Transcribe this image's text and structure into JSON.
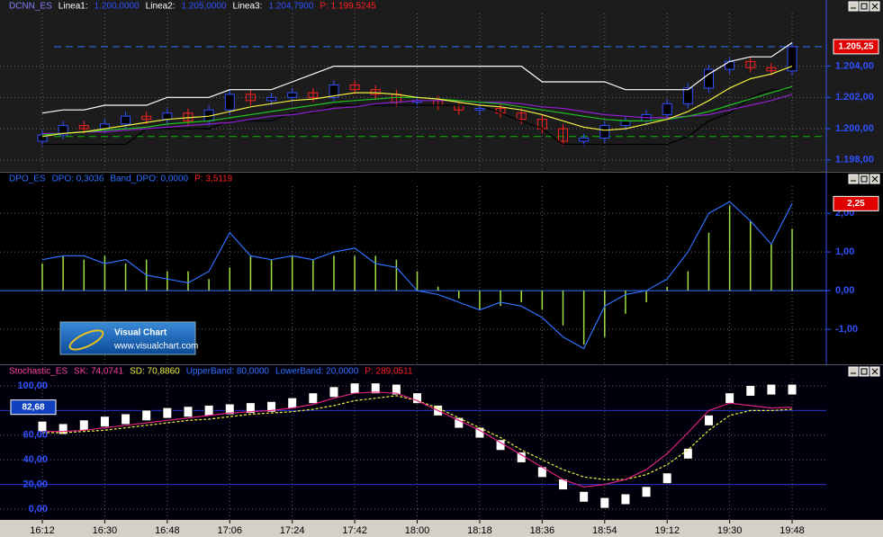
{
  "chart_data": [
    {
      "type": "candlestick",
      "header": [
        {
          "text": "DCNN_ES",
          "color": "#8080ff"
        },
        {
          "text": "Linea1:",
          "color": "#ffffff"
        },
        {
          "text": "1.200,0000",
          "color": "#3050ff"
        },
        {
          "text": "Linea2:",
          "color": "#ffffff"
        },
        {
          "text": "1.205,0000",
          "color": "#3050ff"
        },
        {
          "text": "Linea3:",
          "color": "#ffffff"
        },
        {
          "text": "1.204,7900",
          "color": "#3050ff"
        },
        {
          "text": "P: 1.199,5245",
          "color": "#ff2020"
        }
      ],
      "open": [
        1199.2,
        1199.6,
        1200.2,
        1200.0,
        1200.3,
        1200.8,
        1200.6,
        1201.0,
        1200.5,
        1201.2,
        1202.2,
        1201.8,
        1202.0,
        1202.3,
        1202.0,
        1202.8,
        1202.5,
        1202.2,
        1201.7,
        1201.8,
        1201.5,
        1201.2,
        1201.3,
        1201.0,
        1200.6,
        1200.0,
        1199.2,
        1199.4,
        1200.2,
        1200.5,
        1200.9,
        1201.6,
        1202.6,
        1203.8,
        1204.3,
        1203.9,
        1203.7
      ],
      "high": [
        1199.9,
        1200.5,
        1200.5,
        1200.6,
        1201.1,
        1201.1,
        1201.3,
        1201.3,
        1201.5,
        1202.5,
        1202.5,
        1202.3,
        1202.6,
        1202.6,
        1203.1,
        1203.1,
        1202.8,
        1202.5,
        1202.1,
        1202.1,
        1201.8,
        1201.6,
        1201.6,
        1201.3,
        1200.9,
        1200.3,
        1199.7,
        1200.5,
        1200.8,
        1201.2,
        1201.9,
        1202.9,
        1204.1,
        1204.6,
        1204.6,
        1204.2,
        1205.55
      ],
      "low": [
        1198.9,
        1199.3,
        1199.7,
        1199.7,
        1200.0,
        1200.3,
        1200.3,
        1200.2,
        1200.2,
        1200.9,
        1201.5,
        1201.5,
        1201.7,
        1201.7,
        1201.7,
        1202.2,
        1201.9,
        1201.4,
        1201.4,
        1201.2,
        1200.9,
        1200.9,
        1200.7,
        1200.3,
        1199.7,
        1198.9,
        1198.9,
        1199.1,
        1199.9,
        1200.2,
        1200.6,
        1201.3,
        1202.3,
        1203.5,
        1203.6,
        1203.4,
        1203.4
      ],
      "close": [
        1199.6,
        1200.2,
        1200.0,
        1200.3,
        1200.8,
        1200.6,
        1201.0,
        1200.5,
        1201.2,
        1202.2,
        1201.8,
        1202.0,
        1202.3,
        1202.0,
        1202.8,
        1202.5,
        1202.2,
        1201.7,
        1201.8,
        1201.5,
        1201.2,
        1201.3,
        1201.0,
        1200.6,
        1200.0,
        1199.2,
        1199.4,
        1200.2,
        1200.5,
        1200.9,
        1201.6,
        1202.6,
        1203.8,
        1204.3,
        1203.9,
        1203.7,
        1205.25
      ],
      "up_color": "#3050ff",
      "down_color": "#ff2020",
      "series": [
        {
          "color": "#ffffff",
          "values": [
            1201.0,
            1201.2,
            1201.2,
            1201.5,
            1201.5,
            1201.5,
            1202.0,
            1202.0,
            1202.0,
            1202.5,
            1202.5,
            1202.5,
            1203.0,
            1203.5,
            1204.0,
            1204.0,
            1204.0,
            1204.0,
            1204.0,
            1204.0,
            1204.0,
            1204.0,
            1204.0,
            1204.0,
            1203.0,
            1203.0,
            1203.0,
            1203.0,
            1202.5,
            1202.5,
            1202.5,
            1202.5,
            1203.5,
            1204.3,
            1204.6,
            1204.6,
            1205.5
          ]
        },
        {
          "color": "#000000",
          "values": [
            1199.0,
            1199.0,
            1199.0,
            1199.0,
            1199.0,
            1200.0,
            1200.0,
            1200.0,
            1200.0,
            1200.5,
            1200.5,
            1200.5,
            1201.0,
            1201.0,
            1201.5,
            1201.5,
            1201.5,
            1201.5,
            1201.5,
            1201.5,
            1201.5,
            1201.5,
            1201.0,
            1200.5,
            1200.0,
            1199.0,
            1199.0,
            1199.0,
            1199.0,
            1199.0,
            1199.0,
            1199.5,
            1200.5,
            1201.0,
            1202.0,
            1202.5,
            1202.5
          ]
        },
        {
          "color": "#9020d0",
          "values": [
            1199.7,
            1199.7,
            1199.8,
            1199.8,
            1199.9,
            1200.0,
            1200.1,
            1200.2,
            1200.3,
            1200.4,
            1200.6,
            1200.8,
            1200.9,
            1201.1,
            1201.3,
            1201.4,
            1201.6,
            1201.7,
            1201.8,
            1201.8,
            1201.8,
            1201.7,
            1201.7,
            1201.6,
            1201.4,
            1201.3,
            1201.1,
            1200.9,
            1200.8,
            1200.7,
            1200.7,
            1200.8,
            1200.9,
            1201.2,
            1201.5,
            1201.8,
            1202.2
          ]
        },
        {
          "color": "#20c020",
          "values": [
            1199.6,
            1199.7,
            1199.8,
            1199.9,
            1200.0,
            1200.1,
            1200.3,
            1200.4,
            1200.5,
            1200.7,
            1200.9,
            1201.1,
            1201.3,
            1201.5,
            1201.7,
            1201.8,
            1201.9,
            1202.0,
            1202.0,
            1201.9,
            1201.8,
            1201.7,
            1201.6,
            1201.4,
            1201.2,
            1201.0,
            1200.8,
            1200.6,
            1200.5,
            1200.5,
            1200.6,
            1200.8,
            1201.1,
            1201.5,
            1201.9,
            1202.3,
            1202.7
          ]
        },
        {
          "color": "#f0f040",
          "values": [
            1199.5,
            1199.7,
            1199.8,
            1200.0,
            1200.2,
            1200.4,
            1200.6,
            1200.7,
            1200.8,
            1201.1,
            1201.4,
            1201.6,
            1201.8,
            1201.9,
            1202.1,
            1202.3,
            1202.3,
            1202.2,
            1202.0,
            1201.9,
            1201.7,
            1201.5,
            1201.4,
            1201.2,
            1200.9,
            1200.5,
            1200.1,
            1199.9,
            1200.0,
            1200.3,
            1200.6,
            1201.1,
            1201.8,
            1202.6,
            1203.2,
            1203.5,
            1204.0
          ]
        }
      ],
      "hlines": [
        {
          "value": 1205.25,
          "color": "#3070ff"
        },
        {
          "value": 1199.5,
          "color": "#00c000"
        }
      ],
      "last": {
        "value": 1205.25,
        "label": "1.205,25",
        "color": "#e00000"
      },
      "ylim": [
        1197.3,
        1207.2
      ],
      "yticks": [
        {
          "value": 1204,
          "label": "1.204,00"
        },
        {
          "value": 1202,
          "label": "1.202,00"
        },
        {
          "value": 1200,
          "label": "1.200,00"
        },
        {
          "value": 1198,
          "label": "1.198,00"
        }
      ],
      "grid": true
    },
    {
      "type": "oscillator",
      "header": [
        {
          "text": "DPO_ES",
          "color": "#3070ff"
        },
        {
          "text": "DPO: 0,3036",
          "color": "#3070ff"
        },
        {
          "text": "Band_DPO: 0,0000",
          "color": "#3070ff"
        },
        {
          "text": "P: 3,5119",
          "color": "#ff2020"
        }
      ],
      "bars": {
        "color": "#a0e040",
        "values": [
          0.7,
          0.9,
          0.8,
          0.9,
          0.7,
          0.8,
          0.5,
          0.5,
          0.3,
          0.6,
          0.9,
          0.8,
          0.9,
          0.8,
          0.9,
          0.9,
          0.9,
          0.8,
          0.5,
          0.1,
          -0.2,
          -0.5,
          -0.4,
          -0.3,
          -0.5,
          -0.9,
          -1.4,
          -1.2,
          -0.6,
          -0.3,
          0.1,
          0.5,
          1.5,
          2.2,
          1.8,
          1.2,
          1.6
        ]
      },
      "series": [
        {
          "color": "#3070ff",
          "values": [
            0.8,
            0.9,
            0.9,
            0.7,
            0.8,
            0.4,
            0.3,
            0.2,
            0.5,
            1.5,
            0.9,
            0.8,
            0.9,
            0.8,
            1.0,
            1.1,
            0.7,
            0.6,
            0.0,
            -0.1,
            -0.3,
            -0.5,
            -0.3,
            -0.4,
            -0.7,
            -1.2,
            -1.5,
            -0.4,
            -0.1,
            0.0,
            0.3,
            1.0,
            2.0,
            2.3,
            1.8,
            1.2,
            2.25
          ]
        }
      ],
      "bands": [
        0
      ],
      "band_color": "#3070ff",
      "last": {
        "value": 2.25,
        "label": "2,25",
        "color": "#e00000"
      },
      "ylim": [
        -1.86,
        2.98
      ],
      "yticks": [
        {
          "value": 2,
          "label": "2,00"
        },
        {
          "value": 1,
          "label": "1,00"
        },
        {
          "value": 0,
          "label": "0,00"
        },
        {
          "value": -1,
          "label": "-1,00"
        }
      ],
      "grid": true,
      "watermark": {
        "title": "Visual Chart",
        "url": "www.visualchart.com"
      }
    },
    {
      "type": "stochastic",
      "header": [
        {
          "text": "Stochastic_ES",
          "color": "#ff40a0"
        },
        {
          "text": "SK: 74,0741",
          "color": "#ff40a0"
        },
        {
          "text": "SD: 70,8860",
          "color": "#f0f040"
        },
        {
          "text": "UpperBand: 80,0000",
          "color": "#3070ff"
        },
        {
          "text": "LowerBand: 20,0000",
          "color": "#3070ff"
        },
        {
          "text": "P: 289,0511",
          "color": "#ff2020"
        }
      ],
      "boxes": [
        67,
        65,
        68,
        71,
        73,
        76,
        78,
        79,
        80,
        81,
        82,
        83,
        86,
        90,
        95,
        98,
        98,
        97,
        90,
        80,
        70,
        62,
        52,
        42,
        30,
        20,
        10,
        5,
        8,
        14,
        25,
        45,
        72,
        90,
        96,
        97,
        97
      ],
      "series": [
        {
          "color": "#f0f040",
          "dashed": true,
          "values": [
            62,
            62,
            63,
            64,
            66,
            68,
            70,
            72,
            73,
            75,
            77,
            78,
            79,
            81,
            84,
            88,
            90,
            92,
            88,
            82,
            74,
            66,
            58,
            48,
            40,
            32,
            26,
            24,
            24,
            28,
            36,
            48,
            64,
            76,
            80,
            80,
            81
          ]
        },
        {
          "color": "#e02080",
          "values": [
            63,
            63,
            64,
            66,
            68,
            70,
            72,
            74,
            76,
            78,
            79,
            80,
            82,
            85,
            90,
            94,
            95,
            94,
            88,
            80,
            72,
            64,
            54,
            44,
            34,
            24,
            18,
            20,
            24,
            32,
            45,
            62,
            80,
            86,
            84,
            82,
            82.68
          ]
        }
      ],
      "bands": [
        80,
        20
      ],
      "band_color": "#2030d0",
      "last": {
        "value": 82.68,
        "label": "82,68",
        "color": "#1040c0"
      },
      "ylim": [
        -6.6,
        112.4
      ],
      "yticks": [
        {
          "value": 100,
          "label": "100,00"
        },
        {
          "value": 80,
          "label": "80,00"
        },
        {
          "value": 60,
          "label": "60,00"
        },
        {
          "value": 40,
          "label": "40,00"
        },
        {
          "value": 20,
          "label": "20,00"
        },
        {
          "value": 0,
          "label": "0,00"
        }
      ],
      "grid": true,
      "categories": [
        "16:12",
        null,
        null,
        "16:30",
        null,
        null,
        "16:48",
        null,
        null,
        "17:06",
        null,
        null,
        "17:24",
        null,
        null,
        "17:42",
        null,
        null,
        "18:00",
        null,
        null,
        "18:18",
        null,
        null,
        "18:36",
        null,
        null,
        "18:54",
        null,
        null,
        "19:12",
        null,
        null,
        "19:30",
        null,
        null,
        "19:48"
      ]
    }
  ]
}
